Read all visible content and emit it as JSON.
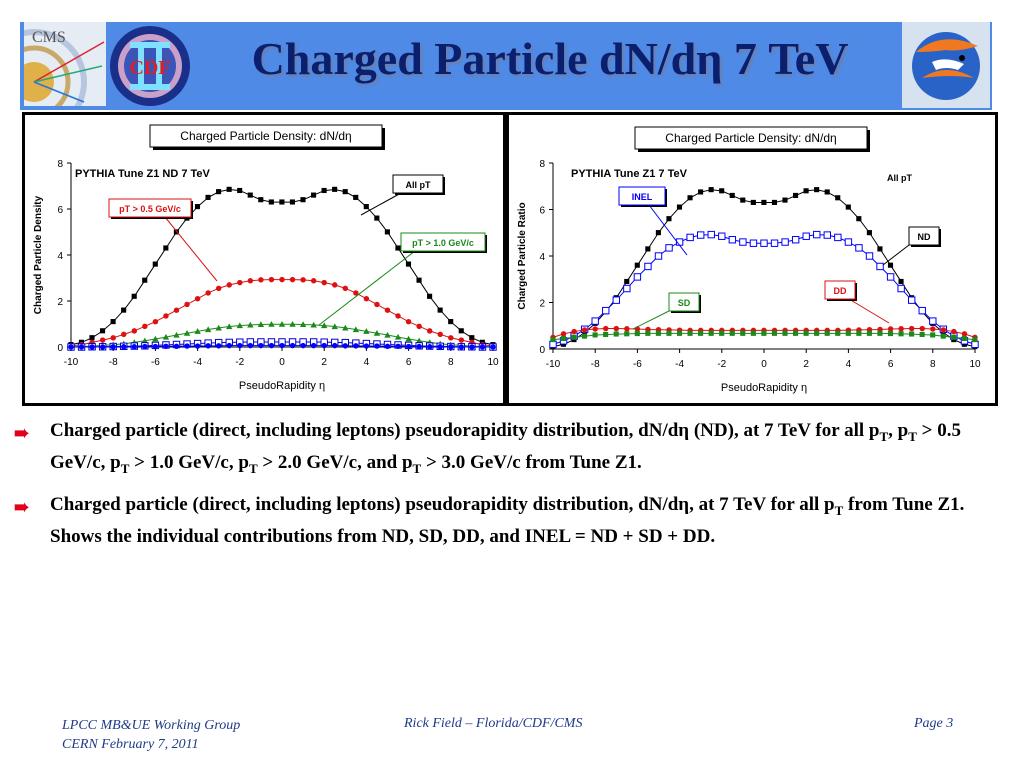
{
  "header": {
    "title": "Charged Particle dN/dη 7 TeV",
    "logos": {
      "cms": "CMS",
      "cdf": "CDF",
      "uf": "uf-gator-logo"
    }
  },
  "chart_data": [
    {
      "type": "line",
      "title": "Charged Particle Density: dN/dη",
      "subtitle": "PYTHIA Tune Z1 ND 7 TeV",
      "xlabel": "PseudoRapidity η",
      "ylabel": "Charged Particle Density",
      "xlim": [
        -10,
        10
      ],
      "ylim": [
        0,
        8
      ],
      "xticks": [
        "-10",
        "-8",
        "-6",
        "-4",
        "-2",
        "0",
        "2",
        "4",
        "6",
        "8",
        "10"
      ],
      "yticks": [
        "0",
        "2",
        "4",
        "6",
        "8"
      ],
      "grid": false,
      "x": [
        -10,
        -9.5,
        -9,
        -8.5,
        -8,
        -7.5,
        -7,
        -6.5,
        -6,
        -5.5,
        -5,
        -4.5,
        -4,
        -3.5,
        -3,
        -2.5,
        -2,
        -1.5,
        -1,
        -0.5,
        0,
        0.5,
        1,
        1.5,
        2,
        2.5,
        3,
        3.5,
        4,
        4.5,
        5,
        5.5,
        6,
        6.5,
        7,
        7.5,
        8,
        8.5,
        9,
        9.5,
        10
      ],
      "series": [
        {
          "name": "All pT",
          "color": "#000000",
          "marker": "square-filled",
          "values": [
            0.1,
            0.2,
            0.4,
            0.7,
            1.1,
            1.6,
            2.2,
            2.9,
            3.6,
            4.3,
            5.0,
            5.6,
            6.1,
            6.5,
            6.75,
            6.85,
            6.8,
            6.6,
            6.4,
            6.3,
            6.3,
            6.3,
            6.4,
            6.6,
            6.8,
            6.85,
            6.75,
            6.5,
            6.1,
            5.6,
            5.0,
            4.3,
            3.6,
            2.9,
            2.2,
            1.6,
            1.1,
            0.7,
            0.4,
            0.2,
            0.1
          ]
        },
        {
          "name": "pT > 0.5 GeV/c",
          "color": "#dd1111",
          "marker": "circle-filled",
          "values": [
            0.05,
            0.1,
            0.2,
            0.3,
            0.4,
            0.55,
            0.7,
            0.9,
            1.1,
            1.35,
            1.6,
            1.85,
            2.1,
            2.35,
            2.55,
            2.7,
            2.8,
            2.88,
            2.92,
            2.93,
            2.93,
            2.93,
            2.92,
            2.88,
            2.8,
            2.7,
            2.55,
            2.35,
            2.1,
            1.85,
            1.6,
            1.35,
            1.1,
            0.9,
            0.7,
            0.55,
            0.4,
            0.3,
            0.2,
            0.1,
            0.05
          ]
        },
        {
          "name": "pT > 1.0 GeV/c",
          "color": "#1a8a1a",
          "marker": "triangle-filled",
          "values": [
            0.01,
            0.02,
            0.04,
            0.07,
            0.1,
            0.14,
            0.2,
            0.27,
            0.35,
            0.43,
            0.52,
            0.6,
            0.68,
            0.76,
            0.83,
            0.89,
            0.93,
            0.96,
            0.98,
            0.99,
            0.99,
            0.99,
            0.98,
            0.96,
            0.93,
            0.89,
            0.83,
            0.76,
            0.68,
            0.6,
            0.52,
            0.43,
            0.35,
            0.27,
            0.2,
            0.14,
            0.1,
            0.07,
            0.04,
            0.02,
            0.01
          ]
        },
        {
          "name": "pT > 2.0 GeV/c",
          "color": "#0000cc",
          "marker": "square-open",
          "values": [
            0.0,
            0.0,
            0.01,
            0.01,
            0.02,
            0.03,
            0.04,
            0.05,
            0.07,
            0.09,
            0.11,
            0.13,
            0.15,
            0.17,
            0.19,
            0.2,
            0.21,
            0.22,
            0.22,
            0.22,
            0.22,
            0.22,
            0.22,
            0.22,
            0.21,
            0.2,
            0.19,
            0.17,
            0.15,
            0.13,
            0.11,
            0.09,
            0.07,
            0.05,
            0.04,
            0.03,
            0.02,
            0.01,
            0.01,
            0.0,
            0.0
          ]
        },
        {
          "name": "pT > 3.0 GeV/c",
          "color": "#0000ff",
          "marker": "circle-filled",
          "values": [
            0.0,
            0.0,
            0.0,
            0.0,
            0.01,
            0.01,
            0.01,
            0.02,
            0.02,
            0.03,
            0.03,
            0.04,
            0.04,
            0.05,
            0.05,
            0.06,
            0.06,
            0.06,
            0.06,
            0.06,
            0.06,
            0.06,
            0.06,
            0.06,
            0.06,
            0.06,
            0.05,
            0.05,
            0.04,
            0.04,
            0.03,
            0.03,
            0.02,
            0.02,
            0.01,
            0.01,
            0.01,
            0.0,
            0.0,
            0.0,
            0.0
          ]
        }
      ],
      "annotations": [
        "All pT",
        "pT > 0.5 GeV/c",
        "pT > 1.0 GeV/c"
      ]
    },
    {
      "type": "line",
      "title": "Charged Particle Density: dN/dη",
      "subtitle": "PYTHIA Tune Z1 7 TeV",
      "xlabel": "PseudoRapidity η",
      "ylabel": "Charged Particle Ratio",
      "xlim": [
        -10,
        10
      ],
      "ylim": [
        0,
        8
      ],
      "xticks": [
        "-10",
        "-8",
        "-6",
        "-4",
        "-2",
        "0",
        "2",
        "4",
        "6",
        "8",
        "10"
      ],
      "yticks": [
        "0",
        "2",
        "4",
        "6",
        "8"
      ],
      "grid": false,
      "x": [
        -10,
        -9.5,
        -9,
        -8.5,
        -8,
        -7.5,
        -7,
        -6.5,
        -6,
        -5.5,
        -5,
        -4.5,
        -4,
        -3.5,
        -3,
        -2.5,
        -2,
        -1.5,
        -1,
        -0.5,
        0,
        0.5,
        1,
        1.5,
        2,
        2.5,
        3,
        3.5,
        4,
        4.5,
        5,
        5.5,
        6,
        6.5,
        7,
        7.5,
        8,
        8.5,
        9,
        9.5,
        10
      ],
      "top_label": "All pT",
      "series": [
        {
          "name": "ND",
          "color": "#000000",
          "marker": "square-filled",
          "values": [
            0.1,
            0.2,
            0.4,
            0.7,
            1.1,
            1.6,
            2.2,
            2.9,
            3.6,
            4.3,
            5.0,
            5.6,
            6.1,
            6.5,
            6.75,
            6.85,
            6.8,
            6.6,
            6.4,
            6.3,
            6.3,
            6.3,
            6.4,
            6.6,
            6.8,
            6.85,
            6.75,
            6.5,
            6.1,
            5.6,
            5.0,
            4.3,
            3.6,
            2.9,
            2.2,
            1.6,
            1.1,
            0.7,
            0.4,
            0.2,
            0.1
          ]
        },
        {
          "name": "INEL",
          "color": "#0000ff",
          "marker": "square-open",
          "values": [
            0.2,
            0.35,
            0.55,
            0.85,
            1.2,
            1.65,
            2.1,
            2.6,
            3.1,
            3.55,
            4.0,
            4.35,
            4.6,
            4.8,
            4.9,
            4.92,
            4.85,
            4.7,
            4.6,
            4.55,
            4.55,
            4.55,
            4.6,
            4.7,
            4.85,
            4.92,
            4.9,
            4.8,
            4.6,
            4.35,
            4.0,
            3.55,
            3.1,
            2.6,
            2.1,
            1.65,
            1.2,
            0.85,
            0.55,
            0.35,
            0.2
          ]
        },
        {
          "name": "DD",
          "color": "#dd1111",
          "marker": "circle-filled",
          "values": [
            0.5,
            0.65,
            0.75,
            0.82,
            0.86,
            0.88,
            0.88,
            0.87,
            0.86,
            0.84,
            0.83,
            0.82,
            0.81,
            0.8,
            0.8,
            0.8,
            0.8,
            0.8,
            0.8,
            0.8,
            0.8,
            0.8,
            0.8,
            0.8,
            0.8,
            0.8,
            0.8,
            0.8,
            0.81,
            0.82,
            0.83,
            0.84,
            0.86,
            0.87,
            0.88,
            0.88,
            0.86,
            0.82,
            0.75,
            0.65,
            0.5
          ]
        },
        {
          "name": "SD",
          "color": "#1a8a1a",
          "marker": "square-filled",
          "values": [
            0.4,
            0.45,
            0.5,
            0.55,
            0.6,
            0.62,
            0.64,
            0.65,
            0.66,
            0.67,
            0.67,
            0.67,
            0.67,
            0.67,
            0.67,
            0.67,
            0.67,
            0.67,
            0.67,
            0.67,
            0.67,
            0.67,
            0.67,
            0.67,
            0.67,
            0.67,
            0.67,
            0.67,
            0.67,
            0.67,
            0.67,
            0.67,
            0.66,
            0.65,
            0.64,
            0.62,
            0.6,
            0.55,
            0.5,
            0.45,
            0.4
          ]
        }
      ],
      "annotations": [
        "INEL",
        "ND",
        "DD",
        "SD"
      ]
    }
  ],
  "bullets": [
    {
      "parts": [
        {
          "t": "Charged particle (direct, including leptons) pseudorapidity distribution, dN/dη (ND), at 7 TeV for all p"
        },
        {
          "t": "T",
          "sub": true
        },
        {
          "t": ", p"
        },
        {
          "t": "T",
          "sub": true
        },
        {
          "t": " > 0.5 GeV/c, p"
        },
        {
          "t": "T",
          "sub": true
        },
        {
          "t": " > 1.0 GeV/c, p"
        },
        {
          "t": "T",
          "sub": true
        },
        {
          "t": " > 2.0 GeV/c, and p"
        },
        {
          "t": "T",
          "sub": true
        },
        {
          "t": " > 3.0 GeV/c from Tune Z1."
        }
      ]
    },
    {
      "parts": [
        {
          "t": "Charged particle (direct, including leptons) pseudorapidity distribution, dN/dη, at 7 TeV for all p"
        },
        {
          "t": "T",
          "sub": true
        },
        {
          "t": " from Tune Z1.  Shows the individual contributions from ND, SD, DD, and INEL = ND + SD + DD."
        }
      ]
    }
  ],
  "footer": {
    "left_line1": "LPCC MB&UE Working Group",
    "left_line2": "CERN February 7, 2011",
    "center": "Rick Field – Florida/CDF/CMS",
    "right": "Page 3"
  }
}
